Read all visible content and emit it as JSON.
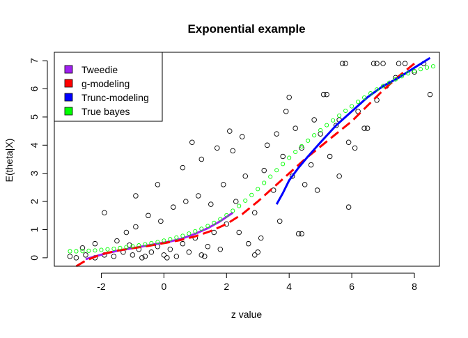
{
  "chart_data": {
    "type": "scatter",
    "title": "Exponential example",
    "xlabel": "z value",
    "ylabel": "E(theta|X)",
    "xlim": [
      -3.5,
      8.8
    ],
    "ylim": [
      -0.3,
      7.3
    ],
    "xticks": [
      -2,
      0,
      2,
      4,
      6,
      8
    ],
    "xtick_labels": [
      "-2",
      "0",
      "2",
      "4",
      "6",
      "8"
    ],
    "yticks": [
      0,
      1,
      2,
      3,
      4,
      5,
      6,
      7
    ],
    "ytick_labels": [
      "0",
      "1",
      "2",
      "3",
      "4",
      "5",
      "6",
      "7"
    ],
    "grid": false,
    "legend_position": "top-left",
    "legend": [
      {
        "label": "Tweedie",
        "color": "#a020f0"
      },
      {
        "label": "g-modeling",
        "color": "#ff0000"
      },
      {
        "label": "Trunc-modeling",
        "color": "#0000ff"
      },
      {
        "label": "True bayes",
        "color": "#00ff00"
      }
    ],
    "scatter_color": "#000000",
    "series": [
      {
        "name": "Tweedie",
        "color": "#a020f0",
        "style": "solid",
        "x": [
          -2.5,
          -2.2,
          -1.8,
          -1.4,
          -1.0,
          -0.6,
          -0.2,
          0.2,
          0.6,
          1.0,
          1.4,
          1.8,
          2.2
        ],
        "y": [
          -0.05,
          0.05,
          0.17,
          0.27,
          0.34,
          0.42,
          0.5,
          0.58,
          0.69,
          0.85,
          1.05,
          1.3,
          1.6
        ]
      },
      {
        "name": "g-modeling",
        "color": "#ff0000",
        "style": "dashed",
        "x": [
          -2.8,
          -2.5,
          -2.0,
          -1.5,
          -1.0,
          -0.5,
          0.0,
          0.5,
          1.0,
          1.5,
          2.0,
          2.5,
          3.0,
          3.5,
          4.0,
          4.5,
          5.0,
          5.5,
          6.0,
          6.5,
          7.0,
          7.5,
          8.0
        ],
        "y": [
          -0.3,
          -0.1,
          0.12,
          0.25,
          0.34,
          0.42,
          0.52,
          0.62,
          0.76,
          0.95,
          1.2,
          1.55,
          2.0,
          2.5,
          3.0,
          3.5,
          3.95,
          4.4,
          4.85,
          5.4,
          5.95,
          6.45,
          6.9
        ]
      },
      {
        "name": "Trunc-modeling",
        "color": "#0000ff",
        "style": "solid",
        "x": [
          3.6,
          3.8,
          4.0,
          4.3,
          4.6,
          5.0,
          5.5,
          6.0,
          6.5,
          7.0,
          7.5,
          8.0,
          8.5
        ],
        "y": [
          1.9,
          2.3,
          2.75,
          3.2,
          3.6,
          4.1,
          4.7,
          5.2,
          5.7,
          6.1,
          6.4,
          6.75,
          7.1
        ]
      },
      {
        "name": "True bayes",
        "color": "#00ff00",
        "style": "points",
        "x": [
          -3.0,
          -2.8,
          -2.6,
          -2.4,
          -2.2,
          -2.0,
          -1.8,
          -1.6,
          -1.4,
          -1.2,
          -1.0,
          -0.8,
          -0.6,
          -0.4,
          -0.2,
          0.0,
          0.2,
          0.4,
          0.6,
          0.8,
          1.0,
          1.2,
          1.4,
          1.6,
          1.8,
          2.0,
          2.2,
          2.4,
          2.6,
          2.8,
          3.0,
          3.2,
          3.4,
          3.6,
          3.8,
          4.0,
          4.2,
          4.4,
          4.6,
          4.8,
          5.0,
          5.2,
          5.4,
          5.6,
          5.8,
          6.0,
          6.2,
          6.4,
          6.6,
          6.8,
          7.0,
          7.2,
          7.4,
          7.6,
          7.8,
          8.0,
          8.2,
          8.4,
          8.6
        ],
        "y": [
          0.23,
          0.23,
          0.24,
          0.25,
          0.26,
          0.28,
          0.3,
          0.32,
          0.35,
          0.38,
          0.41,
          0.44,
          0.48,
          0.52,
          0.56,
          0.61,
          0.66,
          0.72,
          0.78,
          0.86,
          0.94,
          1.03,
          1.13,
          1.24,
          1.37,
          1.51,
          1.67,
          1.84,
          2.03,
          2.23,
          2.44,
          2.66,
          2.88,
          3.11,
          3.33,
          3.55,
          3.76,
          3.96,
          4.16,
          4.35,
          4.53,
          4.71,
          4.88,
          5.05,
          5.22,
          5.38,
          5.54,
          5.69,
          5.84,
          5.98,
          6.1,
          6.22,
          6.34,
          6.45,
          6.55,
          6.63,
          6.7,
          6.76,
          6.8
        ]
      }
    ],
    "points": [
      [
        -2.2,
        0.0
      ],
      [
        -1.9,
        0.1
      ],
      [
        -1.6,
        0.05
      ],
      [
        -1.3,
        0.2
      ],
      [
        -1.0,
        0.1
      ],
      [
        -0.8,
        0.3
      ],
      [
        -0.6,
        0.05
      ],
      [
        -0.4,
        0.2
      ],
      [
        -0.2,
        0.4
      ],
      [
        0.0,
        0.1
      ],
      [
        0.2,
        0.3
      ],
      [
        0.4,
        0.05
      ],
      [
        0.6,
        0.5
      ],
      [
        0.8,
        0.2
      ],
      [
        1.0,
        0.7
      ],
      [
        1.2,
        0.1
      ],
      [
        1.4,
        0.4
      ],
      [
        1.6,
        0.9
      ],
      [
        1.8,
        0.3
      ],
      [
        2.0,
        1.2
      ],
      [
        -1.5,
        0.6
      ],
      [
        -1.2,
        0.9
      ],
      [
        -0.9,
        1.1
      ],
      [
        -0.5,
        1.5
      ],
      [
        -0.1,
        1.3
      ],
      [
        0.3,
        1.8
      ],
      [
        0.7,
        2.0
      ],
      [
        1.1,
        2.2
      ],
      [
        1.5,
        1.9
      ],
      [
        1.9,
        2.6
      ],
      [
        2.3,
        2.0
      ],
      [
        2.6,
        2.9
      ],
      [
        2.9,
        1.6
      ],
      [
        3.2,
        3.1
      ],
      [
        3.5,
        2.4
      ],
      [
        3.8,
        3.6
      ],
      [
        4.1,
        2.9
      ],
      [
        4.4,
        3.9
      ],
      [
        4.7,
        3.3
      ],
      [
        5.0,
        4.4
      ],
      [
        5.3,
        3.6
      ],
      [
        5.6,
        4.9
      ],
      [
        5.9,
        4.1
      ],
      [
        6.2,
        5.2
      ],
      [
        6.5,
        4.6
      ],
      [
        6.8,
        5.6
      ],
      [
        7.1,
        6.1
      ],
      [
        7.4,
        6.4
      ],
      [
        7.7,
        6.9
      ],
      [
        8.0,
        6.6
      ],
      [
        8.3,
        6.9
      ],
      [
        8.5,
        5.8
      ],
      [
        5.7,
        6.9
      ],
      [
        5.8,
        6.9
      ],
      [
        6.7,
        6.9
      ],
      [
        6.8,
        6.9
      ],
      [
        7.0,
        6.9
      ],
      [
        7.5,
        6.9
      ],
      [
        5.9,
        1.8
      ],
      [
        4.3,
        0.85
      ],
      [
        4.4,
        0.85
      ],
      [
        3.0,
        0.2
      ],
      [
        2.9,
        0.1
      ],
      [
        2.7,
        0.5
      ],
      [
        -3.0,
        0.05
      ],
      [
        -2.8,
        0.0
      ],
      [
        -2.5,
        0.1
      ],
      [
        2.2,
        3.8
      ],
      [
        1.7,
        3.9
      ],
      [
        1.2,
        3.5
      ],
      [
        0.6,
        3.2
      ],
      [
        -0.2,
        2.6
      ],
      [
        -0.9,
        2.2
      ],
      [
        -1.9,
        1.6
      ],
      [
        -2.2,
        0.5
      ],
      [
        0.9,
        4.1
      ],
      [
        2.1,
        4.5
      ],
      [
        3.6,
        4.4
      ],
      [
        3.9,
        5.2
      ],
      [
        4.0,
        5.7
      ],
      [
        5.2,
        5.8
      ],
      [
        5.1,
        5.8
      ],
      [
        5.6,
        2.9
      ],
      [
        4.9,
        2.4
      ],
      [
        4.5,
        2.6
      ],
      [
        4.8,
        4.9
      ],
      [
        4.2,
        4.6
      ],
      [
        3.3,
        4.0
      ],
      [
        2.5,
        4.3
      ],
      [
        6.1,
        3.9
      ],
      [
        6.4,
        4.6
      ],
      [
        5.5,
        4.7
      ],
      [
        3.7,
        1.3
      ],
      [
        3.1,
        0.7
      ],
      [
        2.4,
        0.9
      ],
      [
        1.3,
        0.05
      ],
      [
        0.1,
        0.0
      ],
      [
        -0.7,
        0.0
      ],
      [
        -1.1,
        0.45
      ],
      [
        -2.6,
        0.35
      ]
    ]
  }
}
